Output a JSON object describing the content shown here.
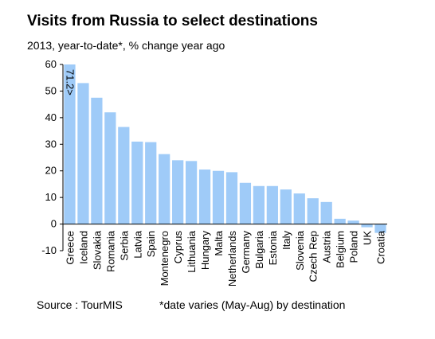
{
  "chart_data": {
    "type": "bar",
    "title": "Visits from Russia to select destinations",
    "subtitle": "2013, year-to-date*, % change year ago",
    "source": "Source : TourMIS",
    "note": "*date varies (May-Aug) by destination",
    "categories": [
      "Greece",
      "Iceland",
      "Slovakia",
      "Romania",
      "Serbia",
      "Latvia",
      "Spain",
      "Montenegro",
      "Cyprus",
      "Lithuania",
      "Hungary",
      "Malta",
      "Netherlands",
      "Germany",
      "Bulgaria",
      "Estonia",
      "Italy",
      "Slovenia",
      "Czech Rep",
      "Austria",
      "Belgium",
      "Poland",
      "UK",
      "Croatia"
    ],
    "values": [
      71.2,
      53,
      47.5,
      42,
      36.5,
      31,
      30.8,
      26.3,
      24,
      23.7,
      20.5,
      20,
      19.5,
      15.5,
      14.3,
      14.3,
      13,
      11.5,
      9.7,
      8.3,
      2,
      1.3,
      -1.2,
      -3.3
    ],
    "value_labels": [
      "71.2>",
      null,
      null,
      null,
      null,
      null,
      null,
      null,
      null,
      null,
      null,
      null,
      null,
      null,
      null,
      null,
      null,
      null,
      null,
      null,
      null,
      null,
      null,
      null
    ],
    "color": "#9fcbf8",
    "ylim": [
      -10,
      60
    ],
    "yticks": [
      -10,
      0,
      10,
      20,
      30,
      40,
      50,
      60
    ],
    "grid": false
  }
}
